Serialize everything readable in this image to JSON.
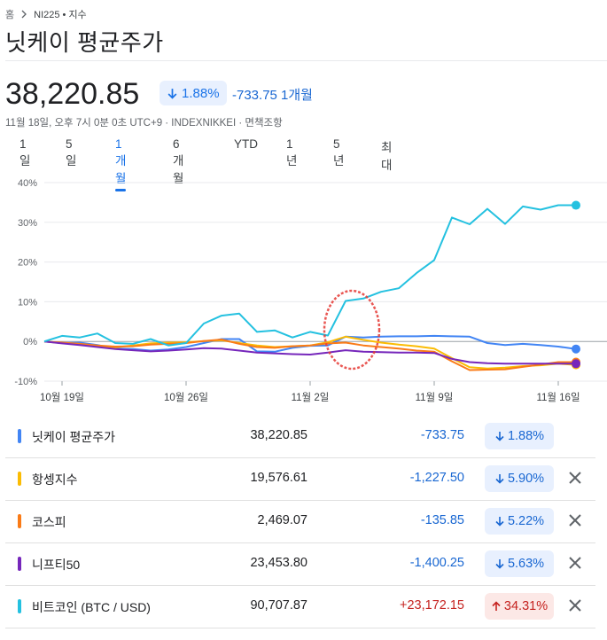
{
  "breadcrumb": {
    "home": "홈",
    "current": "NI225 • 지수"
  },
  "title": "닛케이 평균주가",
  "quote": {
    "price": "38,220.85",
    "change_pct": "1.88%",
    "change_abs_period": "-733.75 1개월",
    "meta": "11월 18일, 오후 7시 0분 0초 UTC+9 · INDEXNIKKEI · 면책조항"
  },
  "tabs": [
    {
      "label": "1일"
    },
    {
      "label": "5일"
    },
    {
      "label": "1개월",
      "active": true
    },
    {
      "label": "6개월"
    },
    {
      "label": "YTD"
    },
    {
      "label": "1년"
    },
    {
      "label": "5년"
    },
    {
      "label": "최대"
    }
  ],
  "chart_data": {
    "type": "line",
    "x_tick_labels": [
      "10월 19일",
      "10월 26일",
      "11월 2일",
      "11월 9일",
      "11월 16일"
    ],
    "y_tick_labels": [
      "40%",
      "30%",
      "20%",
      "10%",
      "0%",
      "-10%"
    ],
    "ylim": [
      -10,
      40
    ],
    "ylabel_unit": "%",
    "grid": true,
    "x": [
      0,
      1,
      2,
      3,
      4,
      5,
      6,
      7,
      8,
      9,
      10,
      11,
      12,
      13,
      14,
      15,
      16,
      17,
      18,
      19,
      20,
      21,
      22,
      23,
      24,
      25,
      26,
      27,
      28,
      29,
      30
    ],
    "x_tick_positions": [
      1,
      8,
      15,
      22,
      29
    ],
    "series": [
      {
        "name": "닛케이 평균주가",
        "color": "#4285f4",
        "values": [
          0,
          -0.4,
          -0.3,
          -0.9,
          -1.8,
          -1.9,
          -2.3,
          -2.0,
          -1.4,
          -0.4,
          0.6,
          0.6,
          -2.5,
          -2.6,
          -1.6,
          -1.1,
          -1.0,
          1.2,
          1.0,
          1.2,
          1.3,
          1.3,
          1.4,
          1.3,
          1.2,
          -0.4,
          -0.9,
          -0.6,
          -0.9,
          -1.3,
          -1.9
        ]
      },
      {
        "name": "항셍지수",
        "color": "#fbbc04",
        "values": [
          0,
          -0.4,
          -0.8,
          -1.3,
          -1.5,
          -1.0,
          -0.5,
          -0.3,
          -0.2,
          0.1,
          0.3,
          -0.4,
          -1.0,
          -1.4,
          -1.2,
          -1.0,
          -0.2,
          1.2,
          0.4,
          -0.3,
          -0.8,
          -1.2,
          -1.8,
          -4.2,
          -6.5,
          -6.8,
          -6.6,
          -6.2,
          -6.0,
          -5.6,
          -5.9
        ]
      },
      {
        "name": "코스피",
        "color": "#fa7b17",
        "values": [
          0,
          -0.3,
          -0.6,
          -1.0,
          -1.3,
          -1.2,
          -0.8,
          -0.6,
          -0.4,
          0.1,
          0.5,
          -0.6,
          -1.4,
          -1.6,
          -1.2,
          -1.0,
          -0.5,
          -0.3,
          -1.0,
          -1.4,
          -1.8,
          -2.3,
          -2.6,
          -5.0,
          -7.2,
          -7.1,
          -7.0,
          -6.4,
          -5.8,
          -5.2,
          -5.2
        ]
      },
      {
        "name": "니프티50",
        "color": "#7627bb",
        "values": [
          0,
          -0.5,
          -0.9,
          -1.4,
          -1.9,
          -2.2,
          -2.5,
          -2.3,
          -2.0,
          -1.7,
          -1.8,
          -2.3,
          -2.8,
          -3.0,
          -3.2,
          -3.3,
          -2.8,
          -2.2,
          -2.6,
          -2.7,
          -2.8,
          -2.8,
          -2.9,
          -4.4,
          -5.2,
          -5.5,
          -5.6,
          -5.6,
          -5.6,
          -5.6,
          -5.6
        ]
      },
      {
        "name": "비트코인 (BTC / USD)",
        "color": "#24c1e0",
        "values": [
          0,
          1.4,
          1.0,
          2.0,
          -0.4,
          -0.6,
          0.6,
          -1.0,
          -0.4,
          4.5,
          6.5,
          7.0,
          2.4,
          2.8,
          1.0,
          2.4,
          1.5,
          10.2,
          10.8,
          12.5,
          13.4,
          17.2,
          20.5,
          31.2,
          29.5,
          33.4,
          29.6,
          34.0,
          33.2,
          34.3,
          34.3
        ]
      }
    ]
  },
  "legend": [
    {
      "name": "닛케이 평균주가",
      "color": "#4285f4",
      "value": "38,220.85",
      "delta": "-733.75",
      "pct": "1.88%",
      "dir": "down",
      "removable": false
    },
    {
      "name": "항셍지수",
      "color": "#fbbc04",
      "value": "19,576.61",
      "delta": "-1,227.50",
      "pct": "5.90%",
      "dir": "down",
      "removable": true
    },
    {
      "name": "코스피",
      "color": "#fa7b17",
      "value": "2,469.07",
      "delta": "-135.85",
      "pct": "5.22%",
      "dir": "down",
      "removable": true
    },
    {
      "name": "니프티50",
      "color": "#7627bb",
      "value": "23,453.80",
      "delta": "-1,400.25",
      "pct": "5.63%",
      "dir": "down",
      "removable": true
    },
    {
      "name": "비트코인 (BTC / USD)",
      "color": "#24c1e0",
      "value": "90,707.87",
      "delta": "+23,172.15",
      "pct": "34.31%",
      "dir": "up",
      "removable": true
    }
  ]
}
